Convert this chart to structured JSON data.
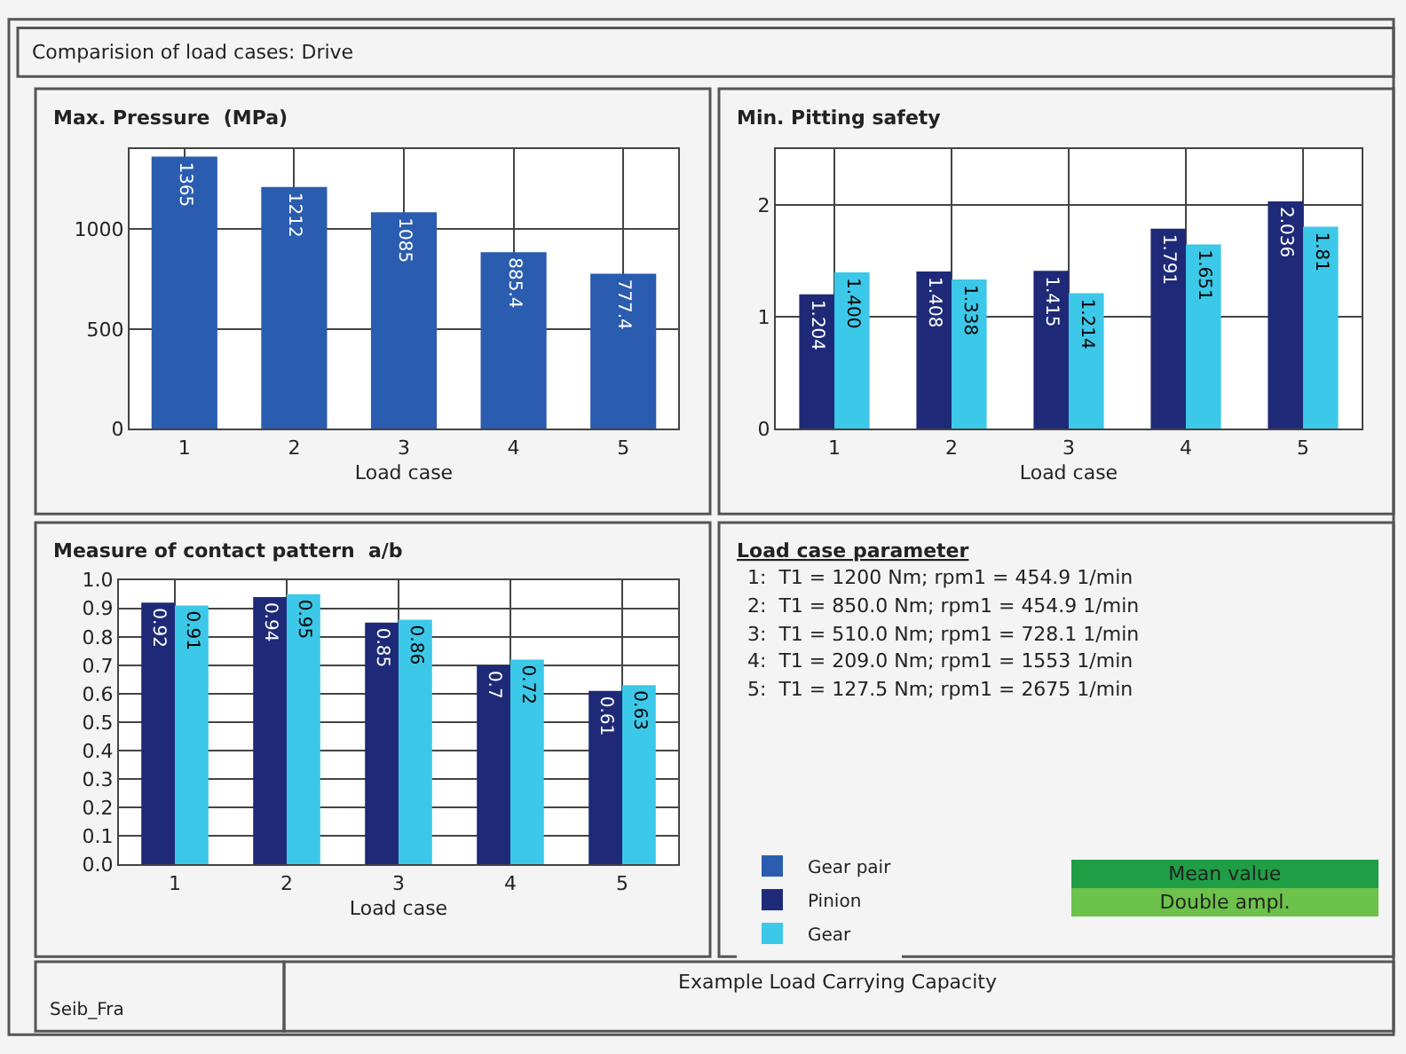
{
  "chart_data": [
    {
      "type": "other",
      "title": "Comparision of load cases: Drive",
      "annotations": [
        "Example Load Carrying Capacity",
        "Seib_Fra"
      ]
    },
    {
      "type": "bar",
      "title": "Max. Pressure  (MPa)",
      "xlabel": "Load case",
      "categories": [
        "1",
        "2",
        "3",
        "4",
        "5"
      ],
      "ylim": [
        0,
        1400
      ],
      "yticks": [
        0,
        500,
        1000
      ],
      "grid": true,
      "legend": "bottom right",
      "series": [
        {
          "name": "Gear pair",
          "color": "#2a5cb0",
          "values": [
            1365,
            1212,
            1085,
            885.4,
            777.4
          ],
          "value_labels": [
            "1365",
            "1212",
            "1085",
            "885.4",
            "777.4"
          ]
        }
      ]
    },
    {
      "type": "bar",
      "title": "Min. Pitting safety",
      "xlabel": "Load case",
      "categories": [
        "1",
        "2",
        "3",
        "4",
        "5"
      ],
      "ylim": [
        0,
        2.5
      ],
      "yticks": [
        0,
        1,
        2
      ],
      "grid": true,
      "legend": "bottom",
      "series": [
        {
          "name": "Pinion",
          "color": "#1e2a78",
          "values": [
            1.204,
            1.408,
            1.415,
            1.791,
            2.036
          ],
          "value_labels": [
            "1.204",
            "1.408",
            "1.415",
            "1.791",
            "2.036"
          ]
        },
        {
          "name": "Gear",
          "color": "#3cc8e8",
          "values": [
            1.4,
            1.338,
            1.214,
            1.651,
            1.81
          ],
          "value_labels": [
            "1.400",
            "1.338",
            "1.214",
            "1.651",
            "1.81"
          ]
        }
      ]
    },
    {
      "type": "bar",
      "title": "Measure of contact pattern  a/b",
      "xlabel": "Load case",
      "categories": [
        "1",
        "2",
        "3",
        "4",
        "5"
      ],
      "ylim": [
        0,
        1
      ],
      "yticks": [
        {
          "value": 0,
          "label": "0.0"
        },
        0.1,
        0.2,
        0.3,
        0.4,
        0.5,
        0.6,
        0.7,
        0.8,
        0.9,
        {
          "value": 1,
          "label": "1.0"
        }
      ],
      "grid": true,
      "legend": "right",
      "series": [
        {
          "name": "Pinion",
          "color": "#1e2a78",
          "values": [
            0.92,
            0.94,
            0.85,
            0.7,
            0.61
          ],
          "value_labels": [
            "0.92",
            "0.94",
            "0.85",
            "0.7",
            "0.61"
          ]
        },
        {
          "name": "Gear",
          "color": "#3cc8e8",
          "values": [
            0.91,
            0.95,
            0.86,
            0.72,
            0.63
          ],
          "value_labels": [
            "0.91",
            "0.95",
            "0.86",
            "0.72",
            "0.63"
          ]
        }
      ]
    },
    {
      "type": "other",
      "title": "Load case parameter",
      "annotations": [
        "1:  T1 = 1200 Nm; rpm1 = 454.9 1/min",
        "2:  T1 = 850.0 Nm; rpm1 = 454.9 1/min",
        "3:  T1 = 510.0 Nm; rpm1 = 728.1 1/min",
        "4:  T1 = 209.0 Nm; rpm1 = 1553 1/min",
        "5:  T1 = 127.5 Nm; rpm1 = 2675 1/min",
        "Mean value",
        "Double ampl."
      ]
    }
  ]
}
